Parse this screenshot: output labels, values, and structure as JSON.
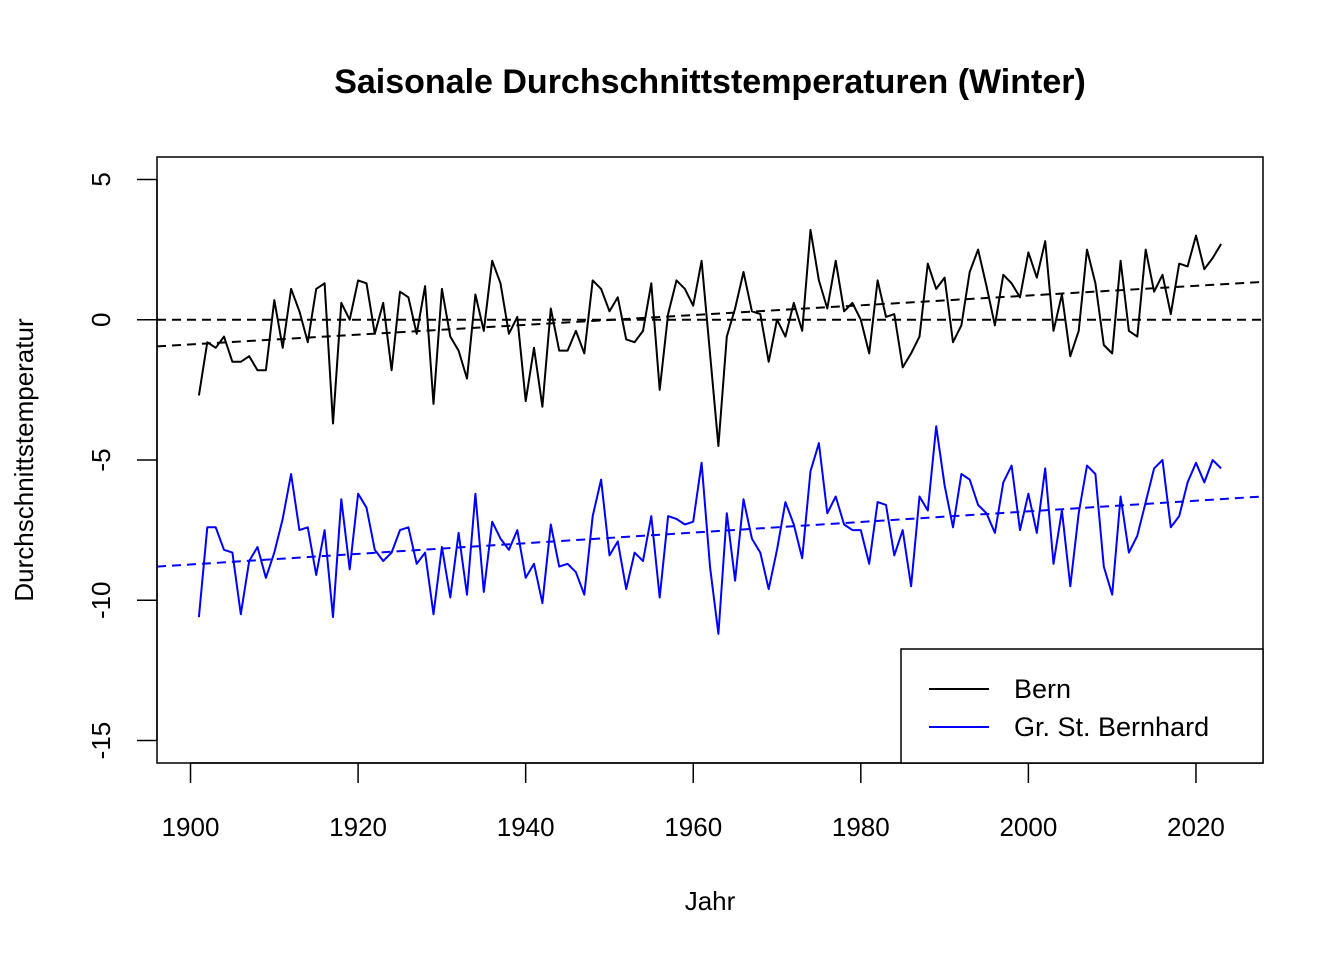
{
  "chart_data": {
    "type": "line",
    "title": "Saisonale Durchschnittstemperaturen (Winter)",
    "xlabel": "Jahr",
    "ylabel": "Durchschnittstemperatur",
    "xlim": [
      1896,
      2028
    ],
    "ylim": [
      -15.8,
      5.8
    ],
    "xticks": [
      1900,
      1920,
      1940,
      1960,
      1980,
      2000,
      2020
    ],
    "yticks": [
      -15,
      -10,
      -5,
      0,
      5
    ],
    "grid": false,
    "legend_position": "bottom-right",
    "x": [
      1901,
      1902,
      1903,
      1904,
      1905,
      1906,
      1907,
      1908,
      1909,
      1910,
      1911,
      1912,
      1913,
      1914,
      1915,
      1916,
      1917,
      1918,
      1919,
      1920,
      1921,
      1922,
      1923,
      1924,
      1925,
      1926,
      1927,
      1928,
      1929,
      1930,
      1931,
      1932,
      1933,
      1934,
      1935,
      1936,
      1937,
      1938,
      1939,
      1940,
      1941,
      1942,
      1943,
      1944,
      1945,
      1946,
      1947,
      1948,
      1949,
      1950,
      1951,
      1952,
      1953,
      1954,
      1955,
      1956,
      1957,
      1958,
      1959,
      1960,
      1961,
      1962,
      1963,
      1964,
      1965,
      1966,
      1967,
      1968,
      1969,
      1970,
      1971,
      1972,
      1973,
      1974,
      1975,
      1976,
      1977,
      1978,
      1979,
      1980,
      1981,
      1982,
      1983,
      1984,
      1985,
      1986,
      1987,
      1988,
      1989,
      1990,
      1991,
      1992,
      1993,
      1994,
      1995,
      1996,
      1997,
      1998,
      1999,
      2000,
      2001,
      2002,
      2003,
      2004,
      2005,
      2006,
      2007,
      2008,
      2009,
      2010,
      2011,
      2012,
      2013,
      2014,
      2015,
      2016,
      2017,
      2018,
      2019,
      2020,
      2021,
      2022,
      2023
    ],
    "series": [
      {
        "name": "Bern",
        "color": "#000000",
        "values": [
          -2.7,
          -0.8,
          -1.0,
          -0.6,
          -1.5,
          -1.5,
          -1.3,
          -1.8,
          -1.8,
          0.7,
          -1.0,
          1.1,
          0.3,
          -0.8,
          1.1,
          1.3,
          -3.7,
          0.6,
          0.0,
          1.4,
          1.3,
          -0.5,
          0.6,
          -1.8,
          1.0,
          0.8,
          -0.5,
          1.2,
          -3.0,
          1.1,
          -0.6,
          -1.1,
          -2.1,
          0.9,
          -0.4,
          2.1,
          1.3,
          -0.5,
          0.1,
          -2.9,
          -1.0,
          -3.1,
          0.4,
          -1.1,
          -1.1,
          -0.4,
          -1.2,
          1.4,
          1.1,
          0.3,
          0.8,
          -0.7,
          -0.8,
          -0.4,
          1.3,
          -2.5,
          0.2,
          1.4,
          1.1,
          0.5,
          2.1,
          -1.2,
          -4.5,
          -0.6,
          0.4,
          1.7,
          0.3,
          0.2,
          -1.5,
          0.0,
          -0.6,
          0.6,
          -0.4,
          3.2,
          1.4,
          0.4,
          2.1,
          0.3,
          0.6,
          0.0,
          -1.2,
          1.4,
          0.1,
          0.2,
          -1.7,
          -1.2,
          -0.6,
          2.0,
          1.1,
          1.5,
          -0.8,
          -0.2,
          1.7,
          2.5,
          1.2,
          -0.2,
          1.6,
          1.3,
          0.8,
          2.4,
          1.5,
          2.8,
          -0.4,
          0.9,
          -1.3,
          -0.4,
          2.5,
          1.3,
          -0.9,
          -1.2,
          2.1,
          -0.4,
          -0.6,
          2.5,
          1.0,
          1.6,
          0.2,
          2.0,
          1.9,
          3.0,
          1.8,
          2.2,
          2.7
        ]
      },
      {
        "name": "Gr. St. Bernhard",
        "color": "#0000ff",
        "values": [
          -10.6,
          -7.4,
          -7.4,
          -8.2,
          -8.3,
          -10.5,
          -8.6,
          -8.1,
          -9.2,
          -8.3,
          -7.1,
          -5.5,
          -7.5,
          -7.4,
          -9.1,
          -7.5,
          -10.6,
          -6.4,
          -8.9,
          -6.2,
          -6.7,
          -8.2,
          -8.6,
          -8.3,
          -7.5,
          -7.4,
          -8.7,
          -8.3,
          -10.5,
          -8.1,
          -9.9,
          -7.6,
          -9.8,
          -6.2,
          -9.7,
          -7.2,
          -7.8,
          -8.2,
          -7.5,
          -9.2,
          -8.7,
          -10.1,
          -7.3,
          -8.8,
          -8.7,
          -9.0,
          -9.8,
          -7.0,
          -5.7,
          -8.4,
          -7.9,
          -9.6,
          -8.3,
          -8.6,
          -7.0,
          -9.9,
          -7.0,
          -7.1,
          -7.3,
          -7.2,
          -5.1,
          -8.8,
          -11.2,
          -6.9,
          -9.3,
          -6.4,
          -7.8,
          -8.3,
          -9.6,
          -8.2,
          -6.5,
          -7.3,
          -8.5,
          -5.4,
          -4.4,
          -6.9,
          -6.3,
          -7.3,
          -7.5,
          -7.5,
          -8.7,
          -6.5,
          -6.6,
          -8.4,
          -7.5,
          -9.5,
          -6.3,
          -6.8,
          -3.8,
          -5.9,
          -7.4,
          -5.5,
          -5.7,
          -6.6,
          -6.9,
          -7.6,
          -5.8,
          -5.2,
          -7.5,
          -6.2,
          -7.6,
          -5.3,
          -8.7,
          -6.8,
          -9.5,
          -6.9,
          -5.2,
          -5.5,
          -8.8,
          -9.8,
          -6.3,
          -8.3,
          -7.7,
          -6.5,
          -5.3,
          -5.0,
          -7.4,
          -7.0,
          -5.8,
          -5.1,
          -5.8,
          -5.0,
          -5.3
        ]
      }
    ],
    "trendlines": [
      {
        "series": "Bern",
        "color": "#000000",
        "dash": true,
        "x": [
          1896,
          2028
        ],
        "y": [
          -0.95,
          1.35
        ]
      },
      {
        "series": "Bern",
        "color": "#000000",
        "dash": true,
        "x": [
          1896,
          2028
        ],
        "y": [
          0.0,
          0.0
        ]
      },
      {
        "series": "Gr. St. Bernhard",
        "color": "#0000ff",
        "dash": true,
        "x": [
          1896,
          2028
        ],
        "y": [
          -8.8,
          -6.3
        ]
      }
    ],
    "legend": [
      {
        "label": "Bern",
        "color": "#000000"
      },
      {
        "label": "Gr. St. Bernhard",
        "color": "#0000ff"
      }
    ]
  }
}
